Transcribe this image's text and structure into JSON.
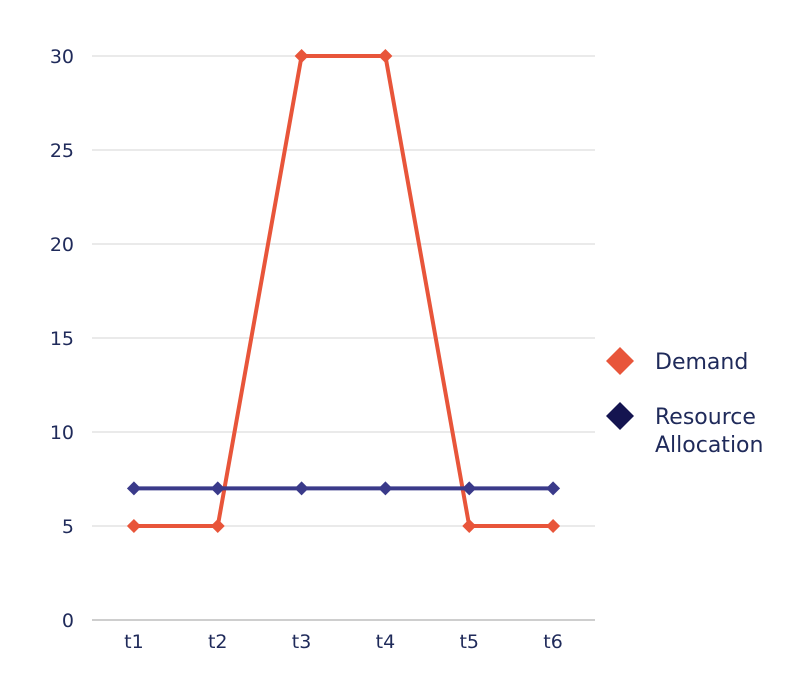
{
  "chart_data": {
    "type": "line",
    "categories": [
      "t1",
      "t2",
      "t3",
      "t4",
      "t5",
      "t6"
    ],
    "series": [
      {
        "name": "Demand",
        "values": [
          5,
          5,
          30,
          30,
          5,
          5
        ],
        "color": "#e8553a",
        "marker": "diamond"
      },
      {
        "name": "Resource Allocation",
        "values": [
          7,
          7,
          7,
          7,
          7,
          7
        ],
        "color": "#3a3a8a",
        "legend_marker_color": "#141450",
        "marker": "diamond"
      }
    ],
    "title": "",
    "xlabel": "",
    "ylabel": "",
    "ylim": [
      0,
      30
    ],
    "yticks": [
      0,
      5,
      10,
      15,
      20,
      25,
      30
    ],
    "grid": true,
    "legend_position": "right"
  }
}
